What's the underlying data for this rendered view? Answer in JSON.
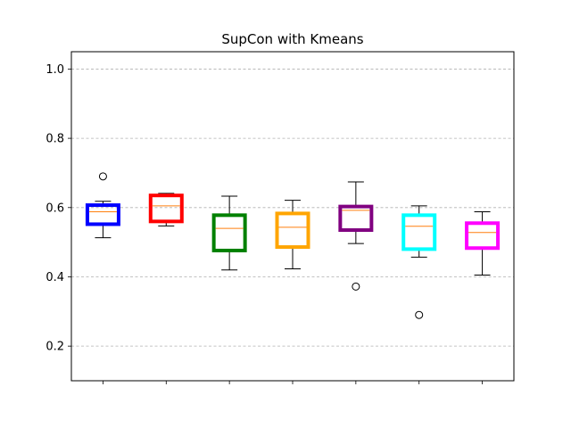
{
  "chart_data": {
    "type": "box",
    "title": "SupCon with Kmeans",
    "xlabel": "",
    "ylabel": "",
    "ylim": [
      0.1,
      1.05
    ],
    "yticks": [
      0.2,
      0.4,
      0.6,
      0.8,
      1.0
    ],
    "ytick_labels": [
      "0.2",
      "0.4",
      "0.6",
      "0.8",
      "1.0"
    ],
    "grid": "y-dashed",
    "median_color": "#ff7f0e",
    "boxes": [
      {
        "color": "#0000ff",
        "whisker_low": 0.513,
        "q1": 0.552,
        "median": 0.588,
        "q3": 0.607,
        "whisker_high": 0.618,
        "outliers": [
          0.69
        ]
      },
      {
        "color": "#ff0000",
        "whisker_low": 0.547,
        "q1": 0.56,
        "median": 0.605,
        "q3": 0.635,
        "whisker_high": 0.641,
        "outliers": []
      },
      {
        "color": "#008000",
        "whisker_low": 0.42,
        "q1": 0.476,
        "median": 0.54,
        "q3": 0.578,
        "whisker_high": 0.633,
        "outliers": []
      },
      {
        "color": "#ffa500",
        "whisker_low": 0.423,
        "q1": 0.486,
        "median": 0.543,
        "q3": 0.583,
        "whisker_high": 0.621,
        "outliers": []
      },
      {
        "color": "#800080",
        "whisker_low": 0.496,
        "q1": 0.535,
        "median": 0.592,
        "q3": 0.603,
        "whisker_high": 0.674,
        "outliers": [
          0.372
        ]
      },
      {
        "color": "#00ffff",
        "whisker_low": 0.457,
        "q1": 0.48,
        "median": 0.546,
        "q3": 0.578,
        "whisker_high": 0.605,
        "outliers": [
          0.29
        ]
      },
      {
        "color": "#ff00ff",
        "whisker_low": 0.405,
        "q1": 0.483,
        "median": 0.528,
        "q3": 0.555,
        "whisker_high": 0.588,
        "outliers": []
      }
    ]
  }
}
